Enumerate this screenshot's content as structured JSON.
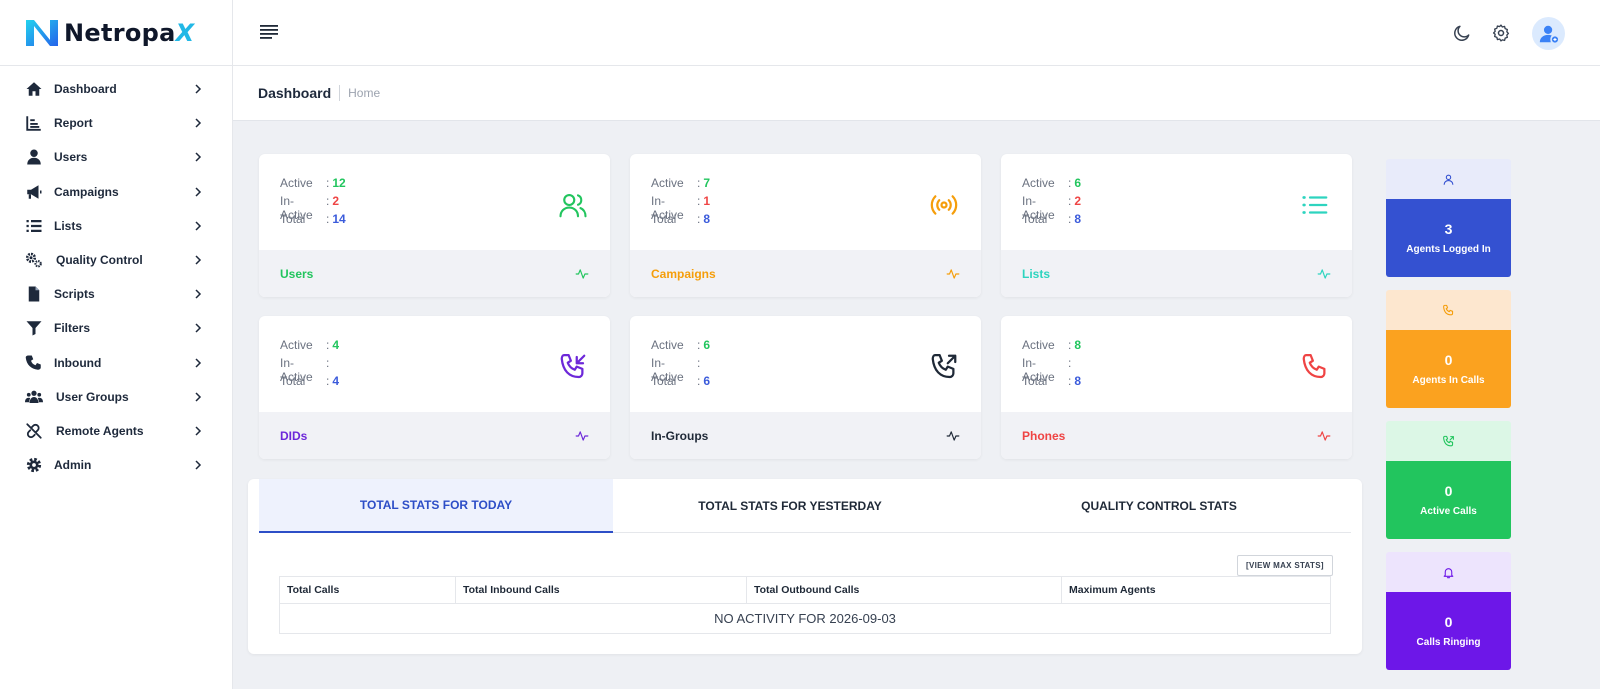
{
  "brand": {
    "name_main": "Netropa",
    "name_x": "X"
  },
  "sidebar": {
    "items": [
      {
        "label": "Dashboard"
      },
      {
        "label": "Report"
      },
      {
        "label": "Users"
      },
      {
        "label": "Campaigns"
      },
      {
        "label": "Lists"
      },
      {
        "label": "Quality Control"
      },
      {
        "label": "Scripts"
      },
      {
        "label": "Filters"
      },
      {
        "label": "Inbound"
      },
      {
        "label": "User Groups"
      },
      {
        "label": "Remote Agents"
      },
      {
        "label": "Admin"
      }
    ]
  },
  "header": {
    "page_title": "Dashboard",
    "breadcrumb_home": "Home"
  },
  "labels": {
    "active": "Active",
    "inactive": "In-Active",
    "total": "Total",
    "sep": ":"
  },
  "cards": [
    {
      "name": "Users",
      "active": "12",
      "inactive": "2",
      "total": "14",
      "color": "#22c55e",
      "icon": "users-icon"
    },
    {
      "name": "Campaigns",
      "active": "7",
      "inactive": "1",
      "total": "8",
      "color": "#f59e0b",
      "icon": "broadcast-icon"
    },
    {
      "name": "Lists",
      "active": "6",
      "inactive": "2",
      "total": "8",
      "color": "#2dd4bf",
      "icon": "list-icon"
    },
    {
      "name": "DIDs",
      "active": "4",
      "inactive": "",
      "total": "4",
      "color": "#6d28d9",
      "icon": "phone-incoming-icon"
    },
    {
      "name": "In-Groups",
      "active": "6",
      "inactive": "",
      "total": "6",
      "color": "#1f2937",
      "icon": "phone-outgoing-icon"
    },
    {
      "name": "Phones",
      "active": "8",
      "inactive": "",
      "total": "8",
      "color": "#ef4444",
      "icon": "phone-icon"
    }
  ],
  "value_colors": {
    "active": "#22c55e",
    "inactive": "#ef4444",
    "total": "#3b5bdb"
  },
  "stats": {
    "tabs": [
      "TOTAL STATS FOR TODAY",
      "TOTAL STATS FOR YESTERDAY",
      "QUALITY CONTROL STATS"
    ],
    "view_max_label": "[VIEW MAX STATS]",
    "columns": [
      "Total Calls",
      "Total Inbound Calls",
      "Total Outbound Calls",
      "Maximum Agents"
    ],
    "empty_message": "NO ACTIVITY FOR 2026-09-03"
  },
  "tiles": [
    {
      "value": "3",
      "label": "Agents Logged In",
      "top_color": "#e8ebfa",
      "bottom_color": "#3451d1",
      "icon": "user-icon"
    },
    {
      "value": "0",
      "label": "Agents In Calls",
      "top_color": "#fde7cf",
      "bottom_color": "#fba21f",
      "icon": "phone-icon"
    },
    {
      "value": "0",
      "label": "Active Calls",
      "top_color": "#dcf7e6",
      "bottom_color": "#22c55e",
      "icon": "phone-call-icon"
    },
    {
      "value": "0",
      "label": "Calls Ringing",
      "top_color": "#ede4fd",
      "bottom_color": "#6d17e8",
      "icon": "bell-icon"
    }
  ]
}
